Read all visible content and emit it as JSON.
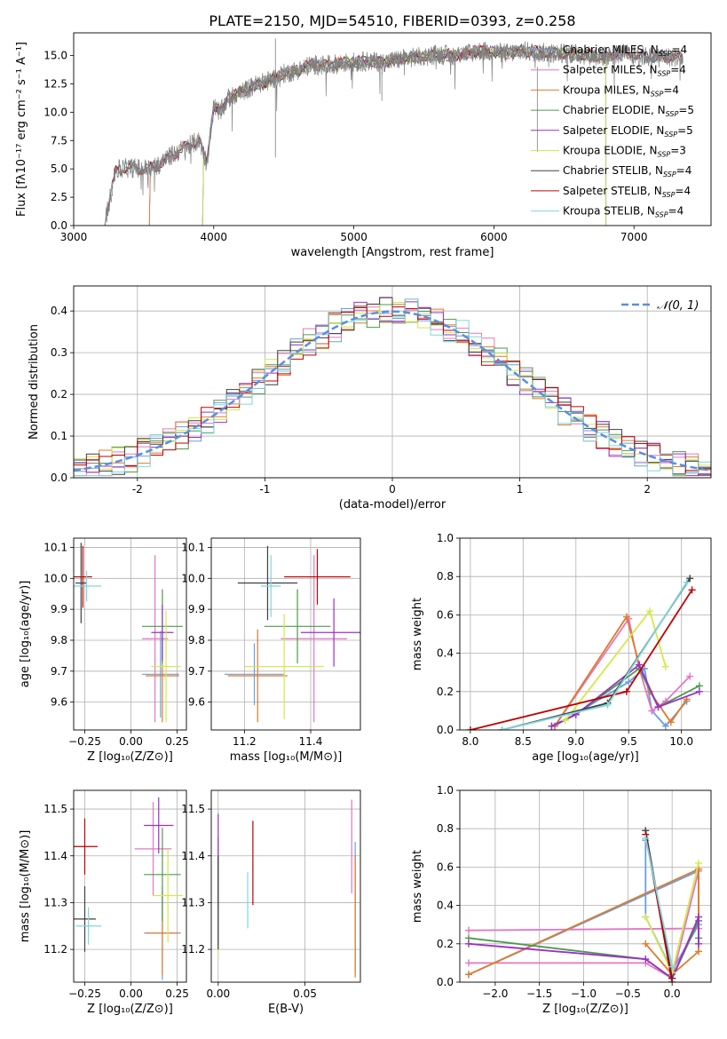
{
  "figure": {
    "title": "PLATE=2150, MJD=54510, FIBERID=0393, z=0.258"
  },
  "chart_data": [
    {
      "id": "spectrum",
      "type": "line",
      "xlabel": "wavelength [Angstrom, rest frame]",
      "ylabel": "Flux [fλ10⁻¹⁷ erg cm⁻² s⁻¹ A⁻¹]",
      "xlim": [
        3000,
        7550
      ],
      "ylim": [
        0,
        17
      ],
      "xticks": [
        3000,
        4000,
        5000,
        6000,
        7000
      ],
      "yticks": [
        0.0,
        2.5,
        5.0,
        7.5,
        10.0,
        12.5,
        15.0
      ],
      "grid": false,
      "legend_position": "top-right",
      "data_series": {
        "name": "",
        "color": "#808080",
        "x": [
          3220,
          3300,
          3400,
          3500,
          3600,
          3700,
          3800,
          3900,
          3950,
          4000,
          4050,
          4100,
          4200,
          4300,
          4400,
          4500,
          4600,
          4700,
          4800,
          4900,
          5000,
          5100,
          5200,
          5300,
          5400,
          5500,
          5600,
          5700,
          5800,
          5900,
          6000,
          6100,
          6200,
          6300,
          6400,
          6500,
          6600,
          6700,
          6800,
          6900,
          7000,
          7100,
          7200,
          7350
        ],
        "y": [
          0,
          4.9,
          5.1,
          5.0,
          5.3,
          6.2,
          6.9,
          7.5,
          5.5,
          10.5,
          10.0,
          11.2,
          11.8,
          12.4,
          12.8,
          13.4,
          13.7,
          14.2,
          14.1,
          14.3,
          14.4,
          14.5,
          14.4,
          14.6,
          14.8,
          14.9,
          15.1,
          15.0,
          15.2,
          15.4,
          15.3,
          15.2,
          15.4,
          15.3,
          15.2,
          15.2,
          15.1,
          15.0,
          14.9,
          15.2,
          15.0,
          14.9,
          14.9,
          14.8
        ]
      },
      "model_series": [
        {
          "name": "Chabrier MILES, N_SSP=4",
          "color": "#6a9ee0",
          "x_start": 3540
        },
        {
          "name": "Salpeter MILES, N_SSP=4",
          "color": "#e377c2",
          "x_start": 3540
        },
        {
          "name": "Kroupa MILES, N_SSP=4",
          "color": "#e07b28",
          "x_start": 3540
        },
        {
          "name": "Chabrier ELODIE, N_SSP=5",
          "color": "#4e9a4e",
          "x_start": 3920,
          "x_end": 6800
        },
        {
          "name": "Salpeter ELODIE, N_SSP=5",
          "color": "#9b30c8",
          "x_start": 3920,
          "x_end": 6800
        },
        {
          "name": "Kroupa ELODIE, N_SSP=3",
          "color": "#d4e84a",
          "x_start": 3920,
          "x_end": 6800
        },
        {
          "name": "Chabrier STELIB, N_SSP=4",
          "color": "#404040",
          "x_start": 3220
        },
        {
          "name": "Salpeter STELIB, N_SSP=4",
          "color": "#c00000",
          "x_start": 3220
        },
        {
          "name": "Kroupa STELIB, N_SSP=4",
          "color": "#7fd6dc",
          "x_start": 3220
        }
      ]
    },
    {
      "id": "residuals",
      "type": "histogram",
      "xlabel": "(data-model)/error",
      "ylabel": "Normed distribution",
      "xlim": [
        -2.5,
        2.5
      ],
      "ylim": [
        0,
        0.46
      ],
      "xticks": [
        -2,
        -1,
        0,
        1,
        2
      ],
      "yticks": [
        0.0,
        0.1,
        0.2,
        0.3,
        0.4
      ],
      "grid": true,
      "legend_position": "top-right",
      "reference": {
        "name": "𝒩(0, 1)",
        "color": "#5b8ee0",
        "mean": 0,
        "sigma": 1
      },
      "bin_width": 0.1
    },
    {
      "id": "Z-age",
      "type": "errorbar",
      "xlabel": "Z [log₁₀(Z/Z⊙)]",
      "ylabel": "age  [log₁₀(age/yr)]",
      "xlim": [
        -0.31,
        0.3
      ],
      "ylim": [
        9.51,
        10.13
      ],
      "xticks": [
        -0.25,
        0.0,
        0.25
      ],
      "xticklabels": [
        "−0.25",
        "0.00",
        "0.25"
      ],
      "yticks": [
        9.6,
        9.7,
        9.8,
        9.9,
        10.0,
        10.1
      ],
      "grid": true,
      "points": [
        {
          "color": "#6a9ee0",
          "x": 0.16,
          "xerr": 0.1,
          "y": 9.69,
          "yerr": 0.14
        },
        {
          "color": "#e377c2",
          "x": 0.13,
          "xerr": 0.07,
          "y": 9.805,
          "yerr": 0.27
        },
        {
          "color": "#e07b28",
          "x": 0.17,
          "xerr": 0.09,
          "y": 9.685,
          "yerr": 0.15
        },
        {
          "color": "#4e9a4e",
          "x": 0.17,
          "xerr": 0.11,
          "y": 9.845,
          "yerr": 0.12
        },
        {
          "color": "#9b30c8",
          "x": 0.17,
          "xerr": 0.06,
          "y": 9.825,
          "yerr": 0.09
        },
        {
          "color": "#d4e84a",
          "x": 0.19,
          "xerr": 0.08,
          "y": 9.715,
          "yerr": 0.18
        },
        {
          "color": "#404040",
          "x": -0.27,
          "xerr": 0.03,
          "y": 9.985,
          "yerr": 0.13
        },
        {
          "color": "#c00000",
          "x": -0.26,
          "xerr": 0.05,
          "y": 10.005,
          "yerr": 0.1
        },
        {
          "color": "#7fd6dc",
          "x": -0.24,
          "xerr": 0.08,
          "y": 9.975,
          "yerr": 0.05
        }
      ]
    },
    {
      "id": "mass-age",
      "type": "errorbar",
      "xlabel": "mass [log₁₀(M/M⊙)]",
      "ylabel": "",
      "xlim": [
        11.1,
        11.55
      ],
      "ylim": [
        9.51,
        10.13
      ],
      "xticks": [
        11.2,
        11.4
      ],
      "xticklabels": [
        "11.2",
        "11.4"
      ],
      "yticks": [
        9.6,
        9.7,
        9.8,
        9.9,
        10.0,
        10.1
      ],
      "grid": true,
      "points": [
        {
          "color": "#6a9ee0",
          "x": 11.23,
          "xerr": 0.09,
          "y": 9.69,
          "yerr": 0.1
        },
        {
          "color": "#e377c2",
          "x": 11.41,
          "xerr": 0.1,
          "y": 9.805,
          "yerr": 0.27
        },
        {
          "color": "#e07b28",
          "x": 11.24,
          "xerr": 0.09,
          "y": 9.685,
          "yerr": 0.15
        },
        {
          "color": "#4e9a4e",
          "x": 11.36,
          "xerr": 0.1,
          "y": 9.845,
          "yerr": 0.12
        },
        {
          "color": "#9b30c8",
          "x": 11.47,
          "xerr": 0.1,
          "y": 9.825,
          "yerr": 0.11
        },
        {
          "color": "#d4e84a",
          "x": 11.32,
          "xerr": 0.12,
          "y": 9.715,
          "yerr": 0.17
        },
        {
          "color": "#404040",
          "x": 11.27,
          "xerr": 0.09,
          "y": 9.985,
          "yerr": 0.12
        },
        {
          "color": "#c00000",
          "x": 11.42,
          "xerr": 0.1,
          "y": 10.005,
          "yerr": 0.09
        },
        {
          "color": "#7fd6dc",
          "x": 11.28,
          "xerr": 0.03,
          "y": 9.975,
          "yerr": 0.1
        }
      ]
    },
    {
      "id": "age-weight",
      "type": "line",
      "xlabel": "age  [log₁₀(age/yr)]",
      "ylabel": "mass weight",
      "xlim": [
        7.9,
        10.28
      ],
      "ylim": [
        0,
        1
      ],
      "xticks": [
        8.0,
        8.5,
        9.0,
        9.5,
        10.0
      ],
      "xticklabels": [
        "8.0",
        "8.5",
        "9.0",
        "9.5",
        "10.0"
      ],
      "yticks": [
        0.0,
        0.2,
        0.4,
        0.6,
        0.8,
        1.0
      ],
      "grid": true,
      "series": [
        {
          "color": "#6a9ee0",
          "x": [
            8.8,
            9.5,
            9.65,
            9.72,
            9.85,
            10.05
          ],
          "y": [
            0.02,
            0.25,
            0.32,
            0.1,
            0.02,
            0.15
          ]
        },
        {
          "color": "#e377c2",
          "x": [
            8.8,
            9.5,
            9.6,
            9.72,
            9.85,
            10.08
          ],
          "y": [
            0.02,
            0.58,
            0.32,
            0.1,
            0.15,
            0.28
          ]
        },
        {
          "color": "#e07b28",
          "x": [
            8.8,
            9.48,
            9.6,
            9.7,
            9.9,
            10.05
          ],
          "y": [
            0.02,
            0.59,
            0.34,
            0.2,
            0.04,
            0.16
          ]
        },
        {
          "color": "#4e9a4e",
          "x": [
            8.77,
            9.0,
            9.6,
            9.78,
            10.17
          ],
          "y": [
            0.02,
            0.08,
            0.32,
            0.12,
            0.23
          ]
        },
        {
          "color": "#9b30c8",
          "x": [
            8.77,
            9.0,
            9.6,
            9.78,
            10.17
          ],
          "y": [
            0.02,
            0.08,
            0.34,
            0.12,
            0.2
          ]
        },
        {
          "color": "#d4e84a",
          "x": [
            8.9,
            9.7,
            9.85
          ],
          "y": [
            0.05,
            0.62,
            0.33
          ]
        },
        {
          "color": "#404040",
          "x": [
            8.3,
            9.3,
            10.08
          ],
          "y": [
            0.0,
            0.14,
            0.79
          ]
        },
        {
          "color": "#c00000",
          "x": [
            8.0,
            9.48,
            10.1
          ],
          "y": [
            0.0,
            0.2,
            0.73
          ]
        },
        {
          "color": "#7fd6dc",
          "x": [
            8.3,
            9.3,
            10.05
          ],
          "y": [
            0.0,
            0.13,
            0.77
          ]
        }
      ]
    },
    {
      "id": "Z-mass",
      "type": "errorbar",
      "xlabel": "Z [log₁₀(Z/Z⊙)]",
      "ylabel": "mass [log₁₀(M/M⊙)]",
      "xlim": [
        -0.31,
        0.3
      ],
      "ylim": [
        11.13,
        11.54
      ],
      "xticks": [
        -0.25,
        0.0,
        0.25
      ],
      "xticklabels": [
        "−0.25",
        "0.00",
        "0.25"
      ],
      "yticks": [
        11.2,
        11.3,
        11.4,
        11.5
      ],
      "grid": true,
      "points": [
        {
          "color": "#6a9ee0",
          "x": 0.17,
          "xerr": 0.1,
          "y": 11.235,
          "yerr": 0.1
        },
        {
          "color": "#e377c2",
          "x": 0.12,
          "xerr": 0.1,
          "y": 11.415,
          "yerr": 0.1
        },
        {
          "color": "#e07b28",
          "x": 0.17,
          "xerr": 0.09,
          "y": 11.235,
          "yerr": 0.09
        },
        {
          "color": "#4e9a4e",
          "x": 0.17,
          "xerr": 0.1,
          "y": 11.36,
          "yerr": 0.1
        },
        {
          "color": "#9b30c8",
          "x": 0.15,
          "xerr": 0.08,
          "y": 11.465,
          "yerr": 0.06
        },
        {
          "color": "#d4e84a",
          "x": 0.2,
          "xerr": 0.08,
          "y": 11.315,
          "yerr": 0.1
        },
        {
          "color": "#404040",
          "x": -0.25,
          "xerr": 0.06,
          "y": 11.265,
          "yerr": 0.07
        },
        {
          "color": "#c00000",
          "x": -0.25,
          "xerr": 0.07,
          "y": 11.42,
          "yerr": 0.06
        },
        {
          "color": "#7fd6dc",
          "x": -0.23,
          "xerr": 0.07,
          "y": 11.25,
          "yerr": 0.04
        }
      ]
    },
    {
      "id": "ebv-mass",
      "type": "errorbar",
      "xlabel": "E(B-V)",
      "ylabel": "",
      "xlim": [
        -0.004,
        0.082
      ],
      "ylim": [
        11.13,
        11.54
      ],
      "xticks": [
        0.0,
        0.05
      ],
      "xticklabels": [
        "0.00",
        "0.05"
      ],
      "yticks": [
        11.2,
        11.3,
        11.4,
        11.5
      ],
      "grid": true,
      "points": [
        {
          "color": "#6a9ee0",
          "x": 0.079,
          "xerr": 0,
          "y": 11.29,
          "yerr": 0.14
        },
        {
          "color": "#e377c2",
          "x": 0.077,
          "xerr": 0,
          "y": 11.42,
          "yerr": 0.1
        },
        {
          "color": "#e07b28",
          "x": 0.079,
          "xerr": 0,
          "y": 11.27,
          "yerr": 0.13
        },
        {
          "color": "#4e9a4e",
          "x": 0.0,
          "xerr": 0,
          "y": 11.32,
          "yerr": 0.12
        },
        {
          "color": "#9b30c8",
          "x": 0.0,
          "xerr": 0,
          "y": 11.39,
          "yerr": 0.1
        },
        {
          "color": "#d4e84a",
          "x": 0.0,
          "xerr": 0,
          "y": 11.2,
          "yerr": 0.01
        },
        {
          "color": "#404040",
          "x": 0.0,
          "xerr": 0,
          "y": 11.3,
          "yerr": 0.1
        },
        {
          "color": "#c00000",
          "x": 0.02,
          "xerr": 0,
          "y": 11.385,
          "yerr": 0.09
        },
        {
          "color": "#7fd6dc",
          "x": 0.017,
          "xerr": 0,
          "y": 11.305,
          "yerr": 0.06
        }
      ]
    },
    {
      "id": "Z-weight",
      "type": "line",
      "xlabel": "Z [log₁₀(Z/Z⊙)]",
      "ylabel": "mass weight",
      "xlim": [
        -2.4,
        0.44
      ],
      "ylim": [
        0,
        1
      ],
      "xticks": [
        -2.0,
        -1.5,
        -1.0,
        -0.5,
        0.0
      ],
      "xticklabels": [
        "−2.0",
        "−1.5",
        "−1.0",
        "−0.5",
        "0.0"
      ],
      "yticks": [
        0.0,
        0.2,
        0.4,
        0.6,
        0.8,
        1.0
      ],
      "grid": true,
      "series": [
        {
          "color": "#6a9ee0",
          "x": [
            -2.3,
            0.3,
            0.3,
            0.0,
            -0.3,
            -0.3
          ],
          "y": [
            0.04,
            0.58,
            0.3,
            0.06,
            0.34,
            0.74
          ]
        },
        {
          "color": "#e377c2",
          "x": [
            -2.3,
            0.3,
            0.3,
            0.0,
            -0.3,
            -2.3
          ],
          "y": [
            0.27,
            0.28,
            0.58,
            0.02,
            0.1,
            0.1
          ]
        },
        {
          "color": "#e07b28",
          "x": [
            -2.3,
            0.3,
            0.3,
            0.0,
            -0.3
          ],
          "y": [
            0.04,
            0.59,
            0.16,
            0.04,
            0.2
          ]
        },
        {
          "color": "#4e9a4e",
          "x": [
            -2.3,
            -0.3,
            0.0,
            0.3,
            0.3
          ],
          "y": [
            0.23,
            0.12,
            0.02,
            0.32,
            0.23
          ]
        },
        {
          "color": "#9b30c8",
          "x": [
            -2.3,
            -0.3,
            0.0,
            0.3,
            0.3
          ],
          "y": [
            0.2,
            0.12,
            0.02,
            0.34,
            0.2
          ]
        },
        {
          "color": "#d4e84a",
          "x": [
            -0.3,
            0.0,
            0.3
          ],
          "y": [
            0.34,
            0.05,
            0.62
          ]
        },
        {
          "color": "#404040",
          "x": [
            -0.3,
            0.0
          ],
          "y": [
            0.79,
            0.02
          ]
        },
        {
          "color": "#c00000",
          "x": [
            -0.3,
            0.0
          ],
          "y": [
            0.77,
            0.0
          ]
        },
        {
          "color": "#7fd6dc",
          "x": [
            -0.3,
            0.0
          ],
          "y": [
            0.75,
            0.08
          ]
        }
      ]
    }
  ]
}
